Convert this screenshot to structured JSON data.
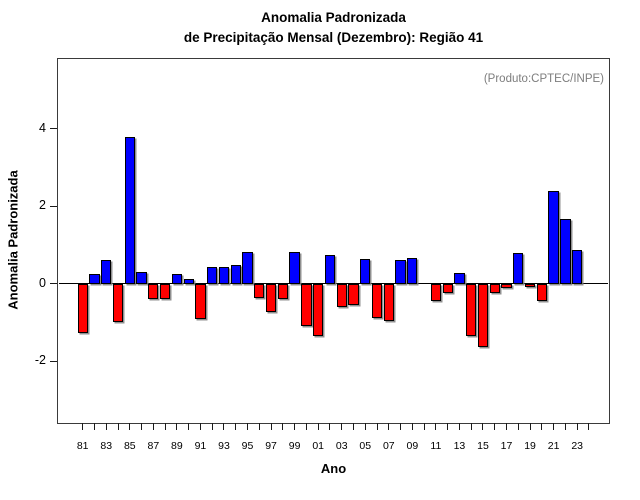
{
  "title": {
    "line1": "Anomalia Padronizada",
    "line2": "de Precipitação Mensal (Dezembro): Região 41"
  },
  "annotation": "(Produto:CPTEC/INPE)",
  "axis": {
    "x_label": "Ano",
    "y_label": "Anomalia Padronizada"
  },
  "colors": {
    "positive_bar": "#0000ff",
    "negative_bar": "#ff0000",
    "bar_border": "#000000",
    "bar_shadow": "#7d7d7d",
    "grid": "#cfcfcf",
    "box_border": "#3a3a3a",
    "annotation_text": "#7d7d7d"
  },
  "chart_data": {
    "type": "bar",
    "title": "Anomalia Padronizada de Precipitação Mensal (Dezembro): Região 41",
    "xlabel": "Ano",
    "ylabel": "Anomalia Padronizada",
    "x": [
      "81",
      "82",
      "83",
      "84",
      "85",
      "86",
      "87",
      "88",
      "89",
      "90",
      "91",
      "92",
      "93",
      "94",
      "95",
      "96",
      "97",
      "98",
      "99",
      "00",
      "01",
      "02",
      "03",
      "04",
      "05",
      "06",
      "07",
      "08",
      "09",
      "10",
      "11",
      "12",
      "13",
      "14",
      "15",
      "16",
      "17",
      "18",
      "19",
      "20",
      "21",
      "22",
      "23"
    ],
    "values": [
      -1.28,
      0.25,
      0.61,
      -1.0,
      3.79,
      0.31,
      -0.4,
      -0.4,
      0.24,
      0.11,
      -0.92,
      0.44,
      0.43,
      0.47,
      0.83,
      -0.37,
      -0.72,
      -0.4,
      0.83,
      -1.08,
      -1.34,
      0.75,
      -0.6,
      -0.55,
      0.64,
      -0.89,
      -0.97,
      0.6,
      0.66,
      0.0,
      -0.45,
      -0.25,
      0.27,
      -1.36,
      -1.64,
      -0.25,
      -0.1,
      0.79,
      -0.09,
      -0.45,
      2.4,
      1.68,
      0.86
    ],
    "x_tick_labels": [
      "81",
      "83",
      "85",
      "87",
      "89",
      "91",
      "93",
      "95",
      "97",
      "99",
      "01",
      "03",
      "05",
      "07",
      "09",
      "11",
      "13",
      "15",
      "17",
      "19",
      "21",
      "23"
    ],
    "y_ticks": [
      -2,
      0,
      2,
      4
    ],
    "ylim": [
      -3.6,
      5.8
    ],
    "grid": "vertical-dotted",
    "legend": null,
    "annotation": "(Produto:CPTEC/INPE)"
  }
}
